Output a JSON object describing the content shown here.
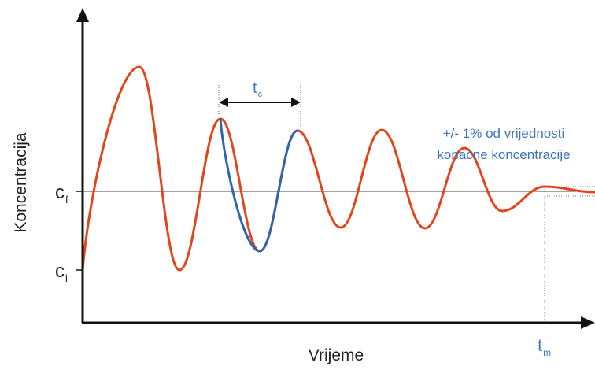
{
  "axes": {
    "y_label": "Koncentracija",
    "x_label": "Vrijeme"
  },
  "y_ticks": {
    "cf": {
      "main": "c",
      "sub": "f"
    },
    "ci": {
      "main": "c",
      "sub": "i"
    }
  },
  "x_ticks": {
    "tm": {
      "main": "t",
      "sub": "m"
    }
  },
  "period_marker": {
    "main": "t",
    "sub": "c"
  },
  "annotation": {
    "line1": "+/- 1% od vrijednosti",
    "line2": "konačne koncentracije"
  },
  "colors": {
    "curve": "#e2451a",
    "cycle": "#2f67a8",
    "annotation": "#3c78b8",
    "axis": "#111111",
    "text": "#222222"
  }
}
